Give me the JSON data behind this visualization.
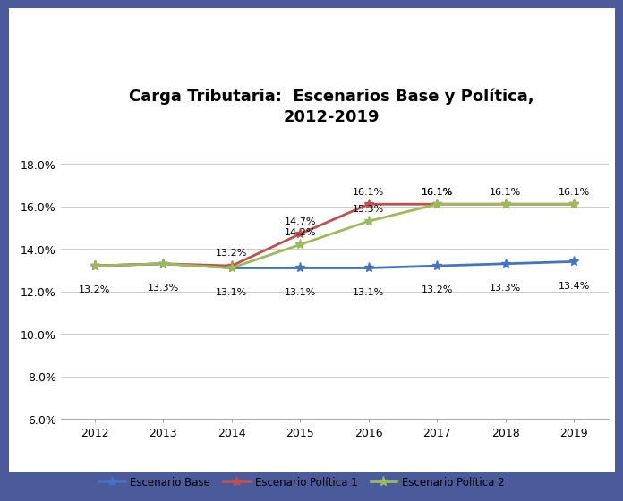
{
  "title": "Carga Tributaria:  Escenarios Base y Política,\n2012-2019",
  "years": [
    2012,
    2013,
    2014,
    2015,
    2016,
    2017,
    2018,
    2019
  ],
  "escenario_base": [
    0.132,
    0.133,
    0.131,
    0.131,
    0.131,
    0.132,
    0.133,
    0.134
  ],
  "escenario_pol1": [
    0.132,
    0.133,
    0.132,
    0.147,
    0.161,
    0.161,
    0.161,
    0.161
  ],
  "escenario_pol2": [
    0.132,
    0.133,
    0.131,
    0.142,
    0.153,
    0.161,
    0.161,
    0.161
  ],
  "labels_base": [
    "13.2%",
    "13.3%",
    "13.1%",
    "13.1%",
    "13.1%",
    "13.2%",
    "13.3%",
    "13.4%"
  ],
  "labels_pol1": [
    "",
    "",
    "13.2%",
    "14.7%",
    "16.1%",
    "16.1%",
    "16.1%",
    "16.1%"
  ],
  "labels_pol2": [
    "",
    "",
    "",
    "14.2%",
    "15.3%",
    "16.1%",
    "",
    ""
  ],
  "color_base": "#4472C4",
  "color_pol1": "#C0504D",
  "color_pol2": "#9BBB59",
  "legend_base": "Escenario Base",
  "legend_pol1": "Escenario Política 1",
  "legend_pol2": "Escenario Política 2",
  "ylim_min": 0.06,
  "ylim_max": 0.185,
  "yticks": [
    0.06,
    0.08,
    0.1,
    0.12,
    0.14,
    0.16,
    0.18
  ],
  "ytick_labels": [
    "6.0%",
    "8.0%",
    "10.0%",
    "12.0%",
    "14.0%",
    "16.0%",
    "18.0%"
  ],
  "bg_color": "#FFFFFF",
  "outer_bg_top": "#3A4A8A",
  "outer_bg_bottom": "#2A3A7A"
}
